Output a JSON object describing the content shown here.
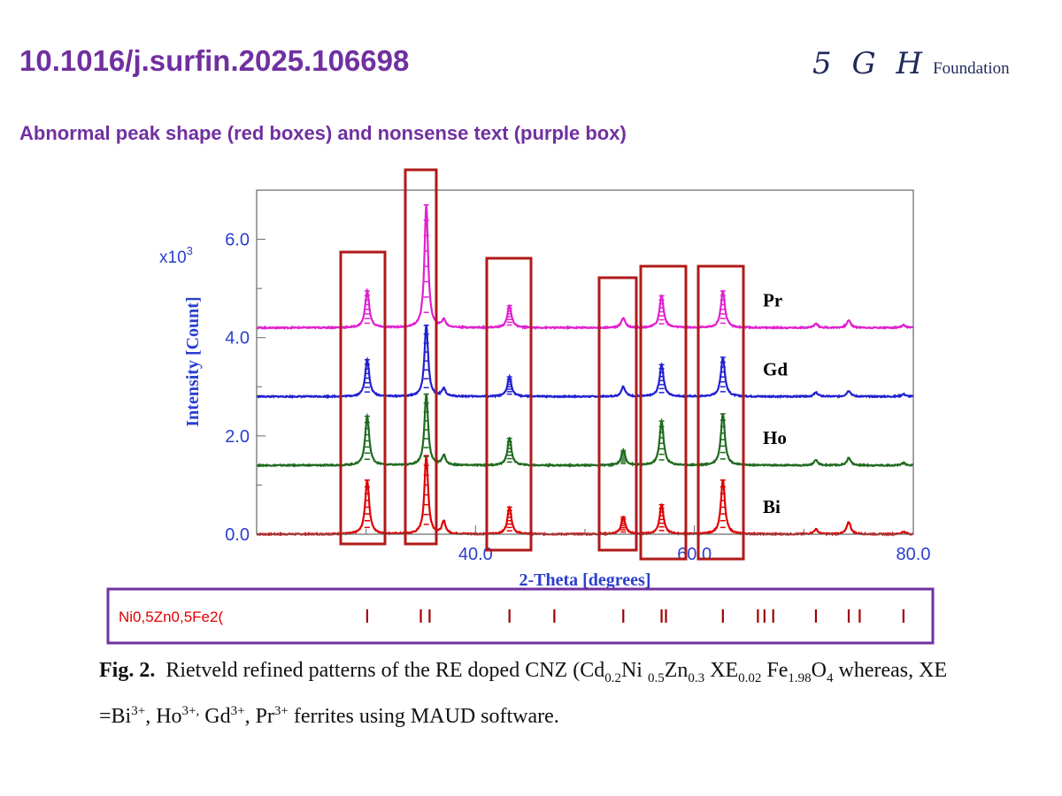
{
  "header": {
    "doi": "10.1016/j.surfin.2025.106698",
    "subtitle": "Abnormal peak shape (red boxes) and nonsense text (purple box)"
  },
  "logo": {
    "mark": "5 G H",
    "text": "Foundation"
  },
  "colors": {
    "heading": "#7030a0",
    "annotation_red": "#b01a1a",
    "annotation_purple": "#7030a0",
    "axis_blue": "#2a3fd0"
  },
  "chart_data": {
    "type": "line",
    "title": "",
    "xlabel": "2-Theta [degrees]",
    "ylabel": "Intensity [Count]",
    "y_multiplier_label": "x10",
    "y_multiplier_exp": "3",
    "xlim": [
      20,
      80
    ],
    "ylim": [
      0,
      7.0
    ],
    "x_ticks": [
      "40.0",
      "60.0",
      "80.0"
    ],
    "y_ticks": [
      "0.0",
      "2.0",
      "4.0",
      "6.0"
    ],
    "grid": false,
    "peaks_2theta": [
      30.1,
      35.5,
      37.1,
      43.1,
      53.5,
      57.0,
      62.6,
      71.1,
      74.1,
      79.1
    ],
    "series": [
      {
        "name": "Bi",
        "color": "#e00000",
        "baseline": 0.0,
        "peak_heights": [
          1.1,
          1.6,
          0.25,
          0.55,
          0.35,
          0.6,
          1.1,
          0.1,
          0.25,
          0.05
        ]
      },
      {
        "name": "Ho",
        "color": "#1e6b1e",
        "baseline": 1.4,
        "peak_heights": [
          1.0,
          1.45,
          0.2,
          0.55,
          0.3,
          0.9,
          1.05,
          0.1,
          0.15,
          0.05
        ]
      },
      {
        "name": "Gd",
        "color": "#2020d0",
        "baseline": 2.8,
        "peak_heights": [
          0.75,
          1.45,
          0.15,
          0.4,
          0.2,
          0.65,
          0.8,
          0.08,
          0.12,
          0.05
        ]
      },
      {
        "name": "Pr",
        "color": "#e020d0",
        "baseline": 4.2,
        "peak_heights": [
          0.75,
          2.5,
          0.15,
          0.45,
          0.2,
          0.65,
          0.75,
          0.08,
          0.15,
          0.05
        ]
      }
    ],
    "phase_label": "Ni0,5Zn0,5Fe2(",
    "phase_reflections": [
      30.1,
      35.0,
      35.8,
      43.1,
      47.2,
      53.5,
      57.0,
      57.4,
      62.6,
      65.8,
      66.4,
      67.2,
      71.1,
      74.1,
      75.1,
      79.1
    ]
  },
  "caption": {
    "label": "Fig. 2.",
    "text_html": "Rietveld refined patterns of the RE doped CNZ (Cd<sub>0.2</sub>Ni <sub>0.5</sub>Zn<sub>0.3</sub> XE<sub>0.02</sub> Fe<sub>1.98</sub>O<sub>4</sub> whereas, XE =Bi<sup>3+</sup>, Ho<sup>3+,</sup> Gd<sup>3+</sup>, Pr<sup>3+</sup> ferrites using MAUD software."
  }
}
